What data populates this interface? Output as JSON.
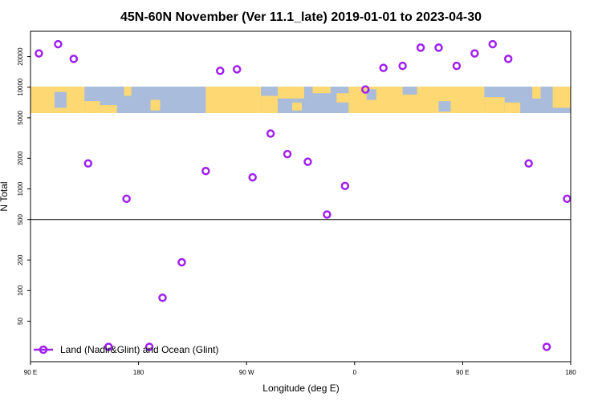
{
  "chart_data": {
    "type": "scatter",
    "title": "45N-60N November (Ver 11.1_late)   2019-01-01 to 2023-04-30",
    "xlabel": "Longitude (deg E)",
    "ylabel": "N Total",
    "y_scale": "log",
    "x_ticks": [
      {
        "value": 90,
        "label": "90 E"
      },
      {
        "value": 180,
        "label": "180"
      },
      {
        "value": 270,
        "label": "90 W"
      },
      {
        "value": 360,
        "label": "0"
      },
      {
        "value": 450,
        "label": "90 E"
      },
      {
        "value": 540,
        "label": "180"
      }
    ],
    "y_ticks": [
      {
        "value": 50,
        "label": "50"
      },
      {
        "value": 100,
        "label": "100"
      },
      {
        "value": 200,
        "label": "200"
      },
      {
        "value": 500,
        "label": "500"
      },
      {
        "value": 1000,
        "label": "1000"
      },
      {
        "value": 2000,
        "label": "2000"
      },
      {
        "value": 5000,
        "label": "5000"
      },
      {
        "value": 10000,
        "label": "10000"
      },
      {
        "value": 20000,
        "label": "20000"
      }
    ],
    "reference_line": 500,
    "legend_position": "bottom-left",
    "colors": {
      "marker": "#a020f0",
      "ocean": "#a9bcdb",
      "land": "#fdd873"
    },
    "series": [
      {
        "name": "Land (Nadir&Glint) and Ocean (Glint)",
        "points": [
          {
            "x": 97,
            "y": 21500
          },
          {
            "x": 113,
            "y": 26500
          },
          {
            "x": 126,
            "y": 19000
          },
          {
            "x": 138,
            "y": 1780
          },
          {
            "x": 155,
            "y": 28
          },
          {
            "x": 170,
            "y": 800
          },
          {
            "x": 189,
            "y": 28
          },
          {
            "x": 200,
            "y": 85
          },
          {
            "x": 216,
            "y": 190
          },
          {
            "x": 236,
            "y": 1500
          },
          {
            "x": 248,
            "y": 14500
          },
          {
            "x": 262,
            "y": 15000
          },
          {
            "x": 275,
            "y": 1300
          },
          {
            "x": 290,
            "y": 3500
          },
          {
            "x": 304,
            "y": 2200
          },
          {
            "x": 321,
            "y": 1850
          },
          {
            "x": 337,
            "y": 560
          },
          {
            "x": 352,
            "y": 1070
          },
          {
            "x": 369,
            "y": 9500
          },
          {
            "x": 384,
            "y": 15500
          },
          {
            "x": 400,
            "y": 16200
          },
          {
            "x": 415,
            "y": 24500
          },
          {
            "x": 430,
            "y": 24500
          },
          {
            "x": 445,
            "y": 16200
          },
          {
            "x": 460,
            "y": 21500
          },
          {
            "x": 475,
            "y": 26500
          },
          {
            "x": 488,
            "y": 19000
          },
          {
            "x": 505,
            "y": 1780
          },
          {
            "x": 520,
            "y": 28
          },
          {
            "x": 537,
            "y": 800
          }
        ]
      }
    ]
  }
}
